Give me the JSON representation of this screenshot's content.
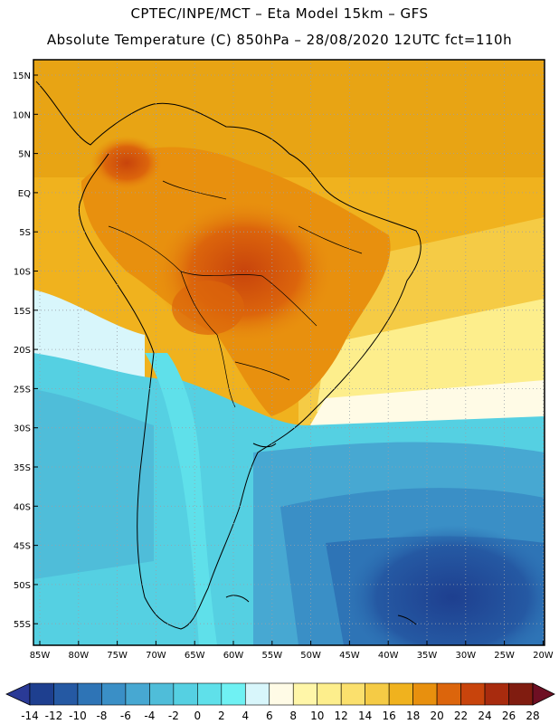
{
  "header": {
    "line1": "CPTEC/INPE/MCT –  Eta Model 15km – GFS",
    "line2": "Absolute Temperature (C) 850hPa – 28/08/2020 12UTC fct=110h"
  },
  "map": {
    "lat_labels": [
      "15N",
      "10N",
      "5N",
      "EQ",
      "5S",
      "10S",
      "15S",
      "20S",
      "25S",
      "30S",
      "35S",
      "40S",
      "45S",
      "50S",
      "55S"
    ],
    "lon_labels": [
      "85W",
      "80W",
      "75W",
      "70W",
      "65W",
      "60W",
      "55W",
      "50W",
      "45W",
      "40W",
      "35W",
      "30W",
      "25W",
      "20W"
    ]
  },
  "colorbar": {
    "labels": [
      "-14",
      "-12",
      "-10",
      "-8",
      "-6",
      "-4",
      "-2",
      "0",
      "2",
      "4",
      "6",
      "8",
      "10",
      "12",
      "14",
      "16",
      "18",
      "20",
      "22",
      "24",
      "26",
      "28"
    ],
    "colors": [
      "#1e3f8f",
      "#2559a3",
      "#2e74b6",
      "#3a8fc6",
      "#47a8d2",
      "#4fbdd9",
      "#55d0e2",
      "#5fe0ea",
      "#6ff1f3",
      "#d8f6fb",
      "#fffbe6",
      "#fff6a8",
      "#fdee8c",
      "#fbe06d",
      "#f5cb45",
      "#f0b21e",
      "#e8900e",
      "#dc650c",
      "#c8440c",
      "#a82b0e",
      "#801c10"
    ],
    "low_color": "#2a3a96",
    "high_color": "#6e0f23"
  }
}
